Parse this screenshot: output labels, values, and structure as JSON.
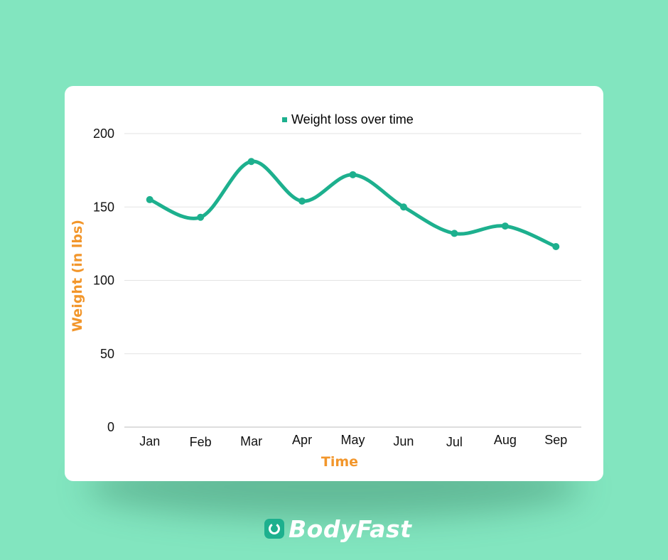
{
  "chart_data": {
    "type": "line",
    "categories": [
      "Jan",
      "Feb",
      "Mar",
      "Apr",
      "May",
      "Jun",
      "Jul",
      "Aug",
      "Sep"
    ],
    "series": [
      {
        "name": "Weight loss over time",
        "values": [
          155,
          143,
          181,
          154,
          172,
          150,
          132,
          137,
          123
        ]
      }
    ],
    "xlabel": "Time",
    "ylabel": "Weight (in lbs)",
    "ylim": [
      0,
      200
    ],
    "yticks": [
      0,
      50,
      100,
      150,
      200
    ],
    "grid": true,
    "legend": "top-center",
    "line_color": "#1db08e",
    "smooth": true
  },
  "colors": {
    "background": "#82e5bf",
    "axis_title": "#f2962b",
    "series": "#1db08e"
  },
  "brand": {
    "name_part1": "Body",
    "name_part2": "Fast",
    "icon": "power-ring-icon"
  }
}
